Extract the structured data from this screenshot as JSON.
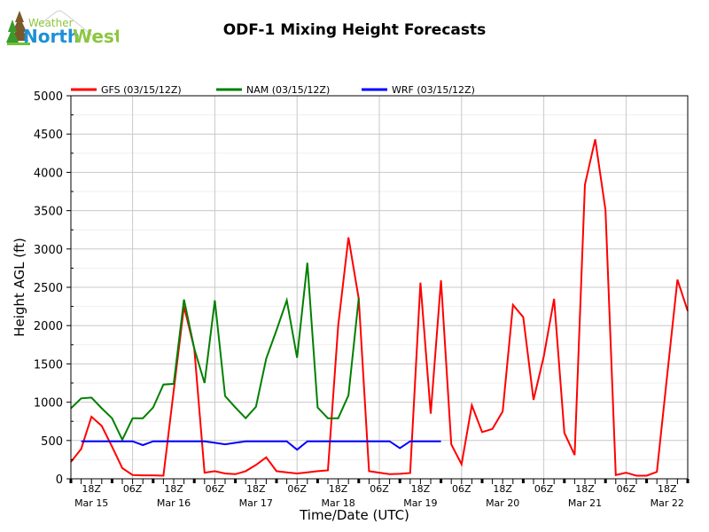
{
  "logo": {
    "top_text": "Weather",
    "main_text_1": "North",
    "main_text_2": "West"
  },
  "colors": {
    "gfs": "#ff0000",
    "nam": "#008000",
    "wrf": "#0000ff",
    "grid": "#c8c8c8",
    "minor_grid": "#efefef"
  },
  "chart_data": {
    "type": "line",
    "title": "ODF-1 Mixing Height Forecasts",
    "xlabel": "Time/Date (UTC)",
    "ylabel": "Height AGL (ft)",
    "ylim": [
      0,
      5000
    ],
    "yticks": [
      0,
      500,
      1000,
      1500,
      2000,
      2500,
      3000,
      3500,
      4000,
      4500,
      5000
    ],
    "x_unit": "hours since 12Z Mar 15",
    "xlim": [
      0,
      180
    ],
    "hour_ticks": [
      {
        "h": 6,
        "label": "18Z"
      },
      {
        "h": 18,
        "label": "06Z"
      },
      {
        "h": 30,
        "label": "18Z"
      },
      {
        "h": 42,
        "label": "06Z"
      },
      {
        "h": 54,
        "label": "18Z"
      },
      {
        "h": 66,
        "label": "06Z"
      },
      {
        "h": 78,
        "label": "18Z"
      },
      {
        "h": 90,
        "label": "06Z"
      },
      {
        "h": 102,
        "label": "18Z"
      },
      {
        "h": 114,
        "label": "06Z"
      },
      {
        "h": 126,
        "label": "18Z"
      },
      {
        "h": 138,
        "label": "06Z"
      },
      {
        "h": 150,
        "label": "18Z"
      },
      {
        "h": 162,
        "label": "06Z"
      },
      {
        "h": 174,
        "label": "18Z"
      }
    ],
    "date_labels": [
      {
        "h": 6,
        "label": "Mar 15"
      },
      {
        "h": 30,
        "label": "Mar 16"
      },
      {
        "h": 54,
        "label": "Mar 17"
      },
      {
        "h": 78,
        "label": "Mar 18"
      },
      {
        "h": 102,
        "label": "Mar 19"
      },
      {
        "h": 126,
        "label": "Mar 20"
      },
      {
        "h": 150,
        "label": "Mar 21"
      },
      {
        "h": 174,
        "label": "Mar 22"
      }
    ],
    "legend_position": "top",
    "grid": true,
    "series": [
      {
        "name": "GFS (03/15/12Z)",
        "key": "gfs",
        "start_h": 0,
        "step_h": 3,
        "values": [
          220,
          390,
          810,
          690,
          420,
          140,
          50,
          45,
          45,
          40,
          1150,
          2250,
          1700,
          80,
          100,
          70,
          60,
          100,
          180,
          280,
          100,
          85,
          70,
          85,
          100,
          110,
          2000,
          3150,
          2350,
          100,
          80,
          60,
          65,
          75,
          2560,
          850,
          2590,
          450,
          190,
          960,
          610,
          650,
          880,
          2270,
          2110,
          1030,
          1600,
          2350,
          600,
          310,
          3840,
          4430,
          3510,
          50,
          80,
          40,
          40,
          90,
          1350,
          2600,
          2190
        ]
      },
      {
        "name": "NAM (03/15/12Z)",
        "key": "nam",
        "start_h": 0,
        "step_h": 3,
        "values": [
          920,
          1050,
          1060,
          920,
          790,
          510,
          790,
          790,
          930,
          1230,
          1240,
          2340,
          1700,
          1250,
          2330,
          1080,
          930,
          790,
          940,
          1570,
          1940,
          2330,
          1580,
          2820,
          930,
          790,
          790,
          1090,
          2360
        ]
      },
      {
        "name": "WRF (03/15/12Z)",
        "key": "wrf",
        "start_h": 3,
        "step_h": 3,
        "values": [
          490,
          490,
          490,
          490,
          490,
          490,
          440,
          490,
          490,
          490,
          490,
          490,
          490,
          470,
          450,
          470,
          490,
          490,
          490,
          490,
          490,
          380,
          490,
          490,
          490,
          490,
          490,
          490,
          490,
          490,
          490,
          400,
          490,
          490,
          490,
          490
        ]
      }
    ]
  }
}
